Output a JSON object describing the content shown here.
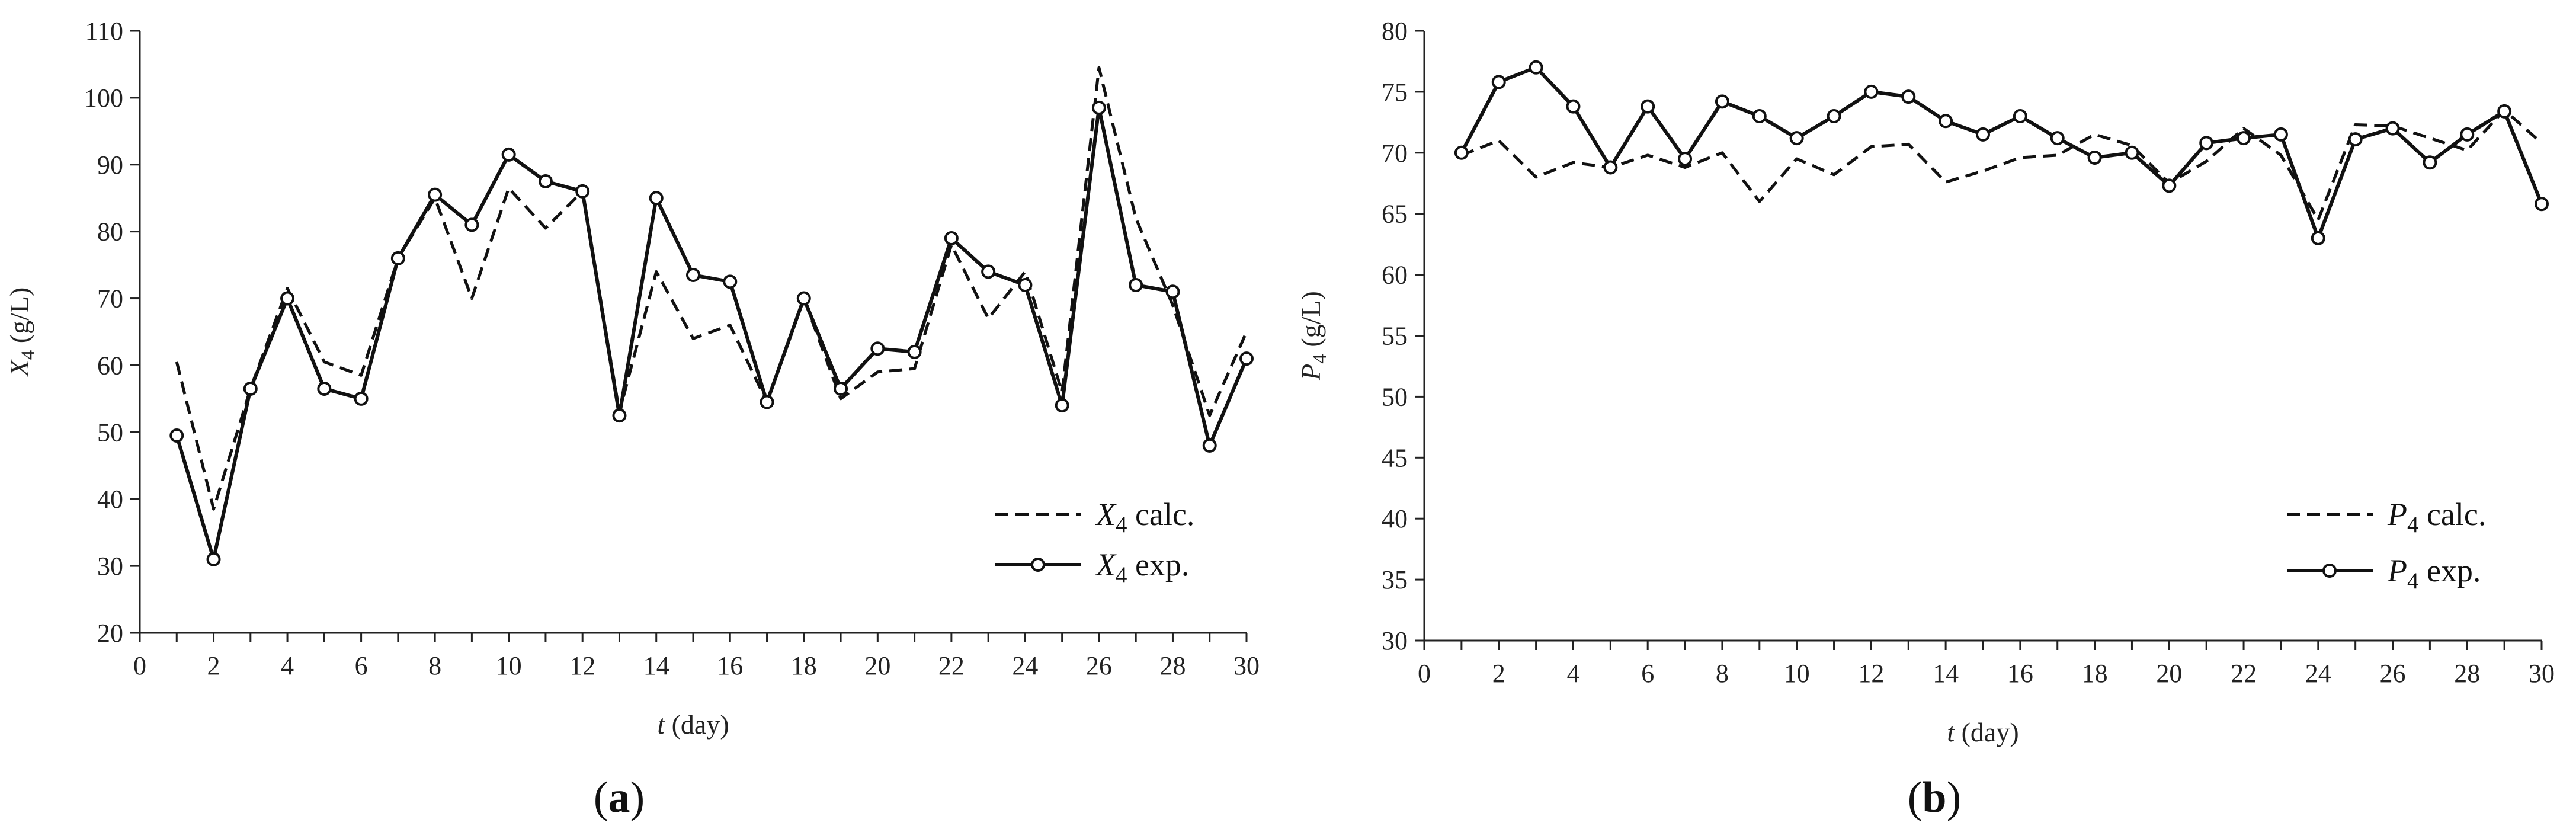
{
  "chart_data": [
    {
      "type": "line",
      "panel_label": {
        "open": "(",
        "letter": "a",
        "close": ")"
      },
      "xlabel": {
        "var": "t",
        "rest": " (day)"
      },
      "ylabel": {
        "var": "X",
        "sub": "4",
        "rest": " (g/L)"
      },
      "xlim": [
        0,
        30
      ],
      "ylim": [
        20,
        110
      ],
      "x_ticks": [
        "0",
        "2",
        "4",
        "6",
        "8",
        "10",
        "12",
        "14",
        "16",
        "18",
        "20",
        "22",
        "24",
        "26",
        "28",
        "30"
      ],
      "y_ticks": [
        "20",
        "30",
        "40",
        "50",
        "60",
        "70",
        "80",
        "90",
        "100",
        "110"
      ],
      "legend_position": "bottom-right",
      "x": [
        1,
        2,
        3,
        4,
        5,
        6,
        7,
        8,
        9,
        10,
        11,
        12,
        13,
        14,
        15,
        16,
        17,
        18,
        19,
        20,
        21,
        22,
        23,
        24,
        25,
        26,
        27,
        28,
        29,
        30
      ],
      "series": [
        {
          "legend": {
            "var": "X",
            "sub": "4",
            "rest": " calc."
          },
          "style": "dashed",
          "values": [
            60.5,
            38.5,
            56.5,
            71.5,
            60.5,
            58.5,
            76,
            85,
            70,
            86.5,
            80.5,
            86,
            53,
            74,
            64,
            66,
            54.5,
            70,
            55,
            59,
            59.5,
            78,
            67,
            74,
            56,
            104.5,
            82,
            69,
            52.5,
            65
          ]
        },
        {
          "legend": {
            "var": "X",
            "sub": "4",
            "rest": " exp."
          },
          "style": "solid-circle",
          "values": [
            49.5,
            31,
            56.5,
            70,
            56.5,
            55,
            76,
            85.5,
            81,
            91.5,
            87.5,
            86,
            52.5,
            85,
            73.5,
            72.5,
            54.5,
            70,
            56.5,
            62.5,
            62,
            79,
            74,
            72,
            54,
            98.5,
            72,
            71,
            48,
            61
          ]
        }
      ]
    },
    {
      "type": "line",
      "panel_label": {
        "open": "(",
        "letter": "b",
        "close": ")"
      },
      "xlabel": {
        "var": "t",
        "rest": " (day)"
      },
      "ylabel": {
        "var": "P",
        "sub": "4",
        "rest": " (g/L)"
      },
      "xlim": [
        0,
        30
      ],
      "ylim": [
        30,
        80
      ],
      "x_ticks": [
        "0",
        "2",
        "4",
        "6",
        "8",
        "10",
        "12",
        "14",
        "16",
        "18",
        "20",
        "22",
        "24",
        "26",
        "28",
        "30"
      ],
      "y_ticks": [
        "30",
        "35",
        "40",
        "45",
        "50",
        "55",
        "60",
        "65",
        "70",
        "75",
        "80"
      ],
      "legend_position": "bottom-right",
      "x": [
        1,
        2,
        3,
        4,
        5,
        6,
        7,
        8,
        9,
        10,
        11,
        12,
        13,
        14,
        15,
        16,
        17,
        18,
        19,
        20,
        21,
        22,
        23,
        24,
        25,
        26,
        27,
        28,
        29,
        30
      ],
      "series": [
        {
          "legend": {
            "var": "P",
            "sub": "4",
            "rest": " calc."
          },
          "style": "dashed",
          "values": [
            69.8,
            71,
            68,
            69.2,
            68.8,
            69.8,
            68.8,
            70,
            66,
            69.5,
            68.2,
            70.5,
            70.7,
            67.6,
            68.5,
            69.6,
            69.8,
            71.5,
            70.6,
            67.5,
            69.3,
            72,
            69.8,
            64.5,
            72.3,
            72.2,
            71.2,
            70.2,
            73.5,
            70.8
          ]
        },
        {
          "legend": {
            "var": "P",
            "sub": "4",
            "rest": " exp."
          },
          "style": "solid-circle",
          "values": [
            70,
            75.8,
            77,
            73.8,
            68.8,
            73.8,
            69.5,
            74.2,
            73,
            71.2,
            73,
            75,
            74.6,
            72.6,
            71.5,
            73,
            71.2,
            69.6,
            70,
            67.3,
            70.8,
            71.2,
            71.5,
            63,
            71.1,
            72,
            69.2,
            71.5,
            73.4,
            65.8
          ]
        }
      ]
    }
  ]
}
